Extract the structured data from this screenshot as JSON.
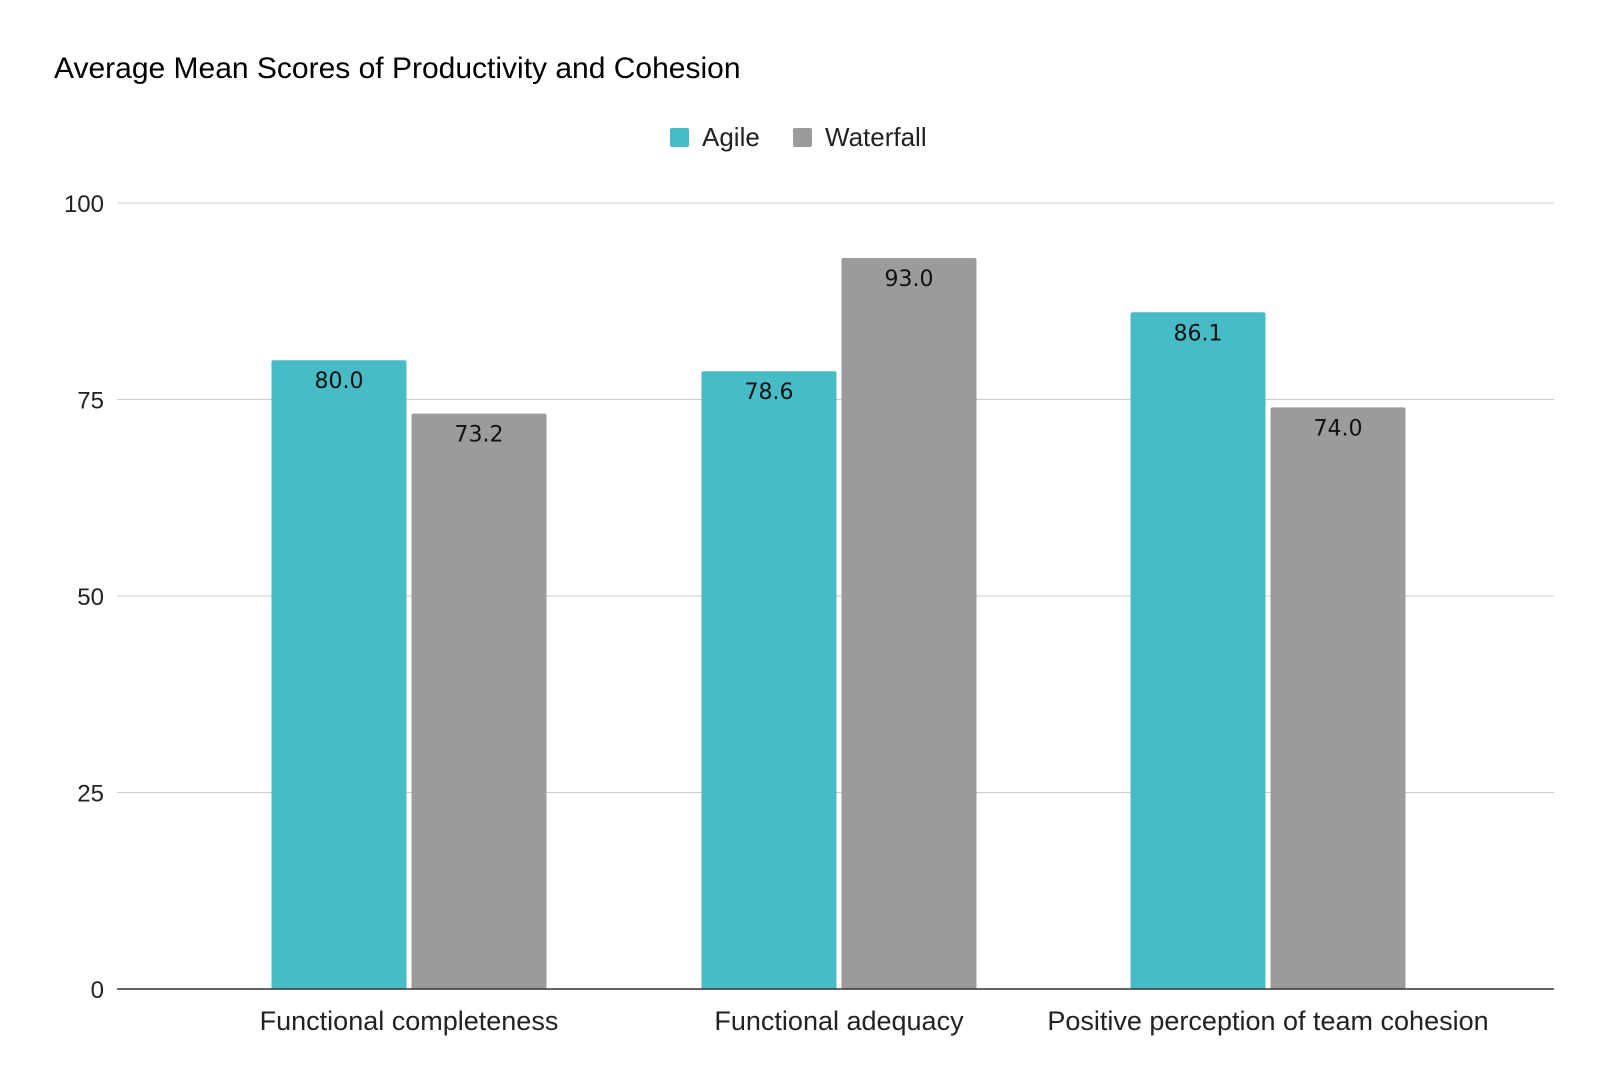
{
  "chart_data": {
    "type": "bar",
    "title": "Average Mean Scores of Productivity and Cohesion",
    "categories": [
      "Functional completeness",
      "Functional adequacy",
      "Positive perception of team cohesion"
    ],
    "series": [
      {
        "name": "Agile",
        "values": [
          80.0,
          78.6,
          86.1
        ],
        "color": "#47bcc6",
        "labels": [
          "80.0",
          "78.6",
          "86.1"
        ]
      },
      {
        "name": "Waterfall",
        "values": [
          73.2,
          93.0,
          74.0
        ],
        "color": "#9b9b9b",
        "labels": [
          "73.2",
          "93.0",
          "74.0"
        ]
      }
    ],
    "ylim": [
      0,
      100
    ],
    "yticks": [
      0,
      25,
      50,
      75,
      100
    ],
    "ytick_labels": [
      "0",
      "25",
      "50",
      "75",
      "100"
    ],
    "grid": true,
    "legend_position": "top-center",
    "xlabel": "",
    "ylabel": ""
  }
}
